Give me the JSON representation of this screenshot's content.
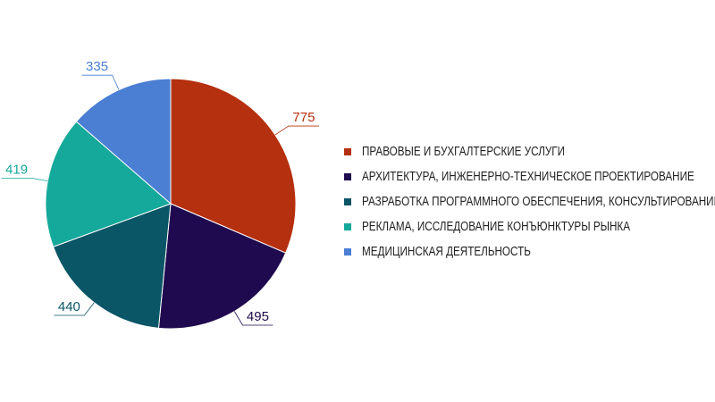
{
  "chart_data": {
    "type": "pie",
    "categories": [
      "ПРАВОВЫЕ И БУХГАЛТЕРСКИЕ УСЛУГИ",
      "АРХИТЕКТУРА, ИНЖЕНЕРНО-ТЕХНИЧЕСКОЕ ПРОЕКТИРОВАНИЕ",
      "РАЗРАБОТКА ПРОГРАММНОГО ОБЕСПЕЧЕНИЯ, КОНСУЛЬТИРОВАНИЕ",
      "РЕКЛАМА, ИССЛЕДОВАНИЕ КОНЪЮНКТУРЫ РЫНКА",
      "МЕДИЦИНСКАЯ ДЕЯТЕЛЬНОСТЬ"
    ],
    "values": [
      775,
      495,
      440,
      419,
      335
    ],
    "colors": [
      "#b5300f",
      "#1f0a4f",
      "#0a5566",
      "#15a99b",
      "#4a7fd4"
    ],
    "legend": "right"
  }
}
